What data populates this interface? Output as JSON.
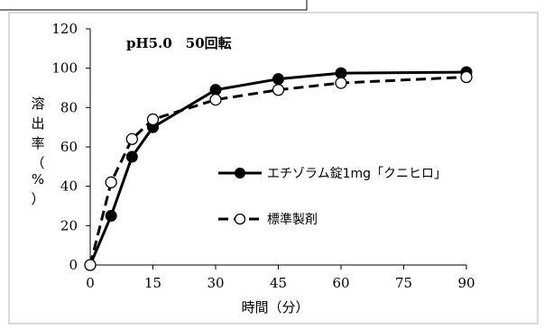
{
  "chart_data": {
    "type": "line",
    "subtitle": "pH5.0　50回転",
    "xlabel": "時間（分）",
    "ylabel_chars": [
      "溶",
      "出",
      "率",
      "（",
      "%",
      "）"
    ],
    "x_ticks": [
      "0",
      "15",
      "30",
      "45",
      "60",
      "75",
      "90"
    ],
    "y_ticks": [
      "0",
      "20",
      "40",
      "60",
      "80",
      "100",
      "120"
    ],
    "xlim": [
      0,
      90
    ],
    "ylim": [
      0,
      120
    ],
    "grid": false,
    "legend_position": "right",
    "series": [
      {
        "name": "エチゾラム錠1mg「クニヒロ」",
        "line_style": "solid",
        "marker": "filled-circle",
        "color": "#000000",
        "x": [
          0,
          5,
          10,
          15,
          30,
          45,
          60,
          90
        ],
        "y": [
          0,
          25,
          55,
          70,
          89,
          94.5,
          97.5,
          98
        ]
      },
      {
        "name": "標準製剤",
        "line_style": "dashed",
        "marker": "open-circle",
        "color": "#000000",
        "x": [
          0,
          5,
          10,
          15,
          30,
          45,
          60,
          90
        ],
        "y": [
          0,
          42,
          64,
          74,
          84,
          89,
          92.5,
          95.5
        ]
      }
    ]
  }
}
